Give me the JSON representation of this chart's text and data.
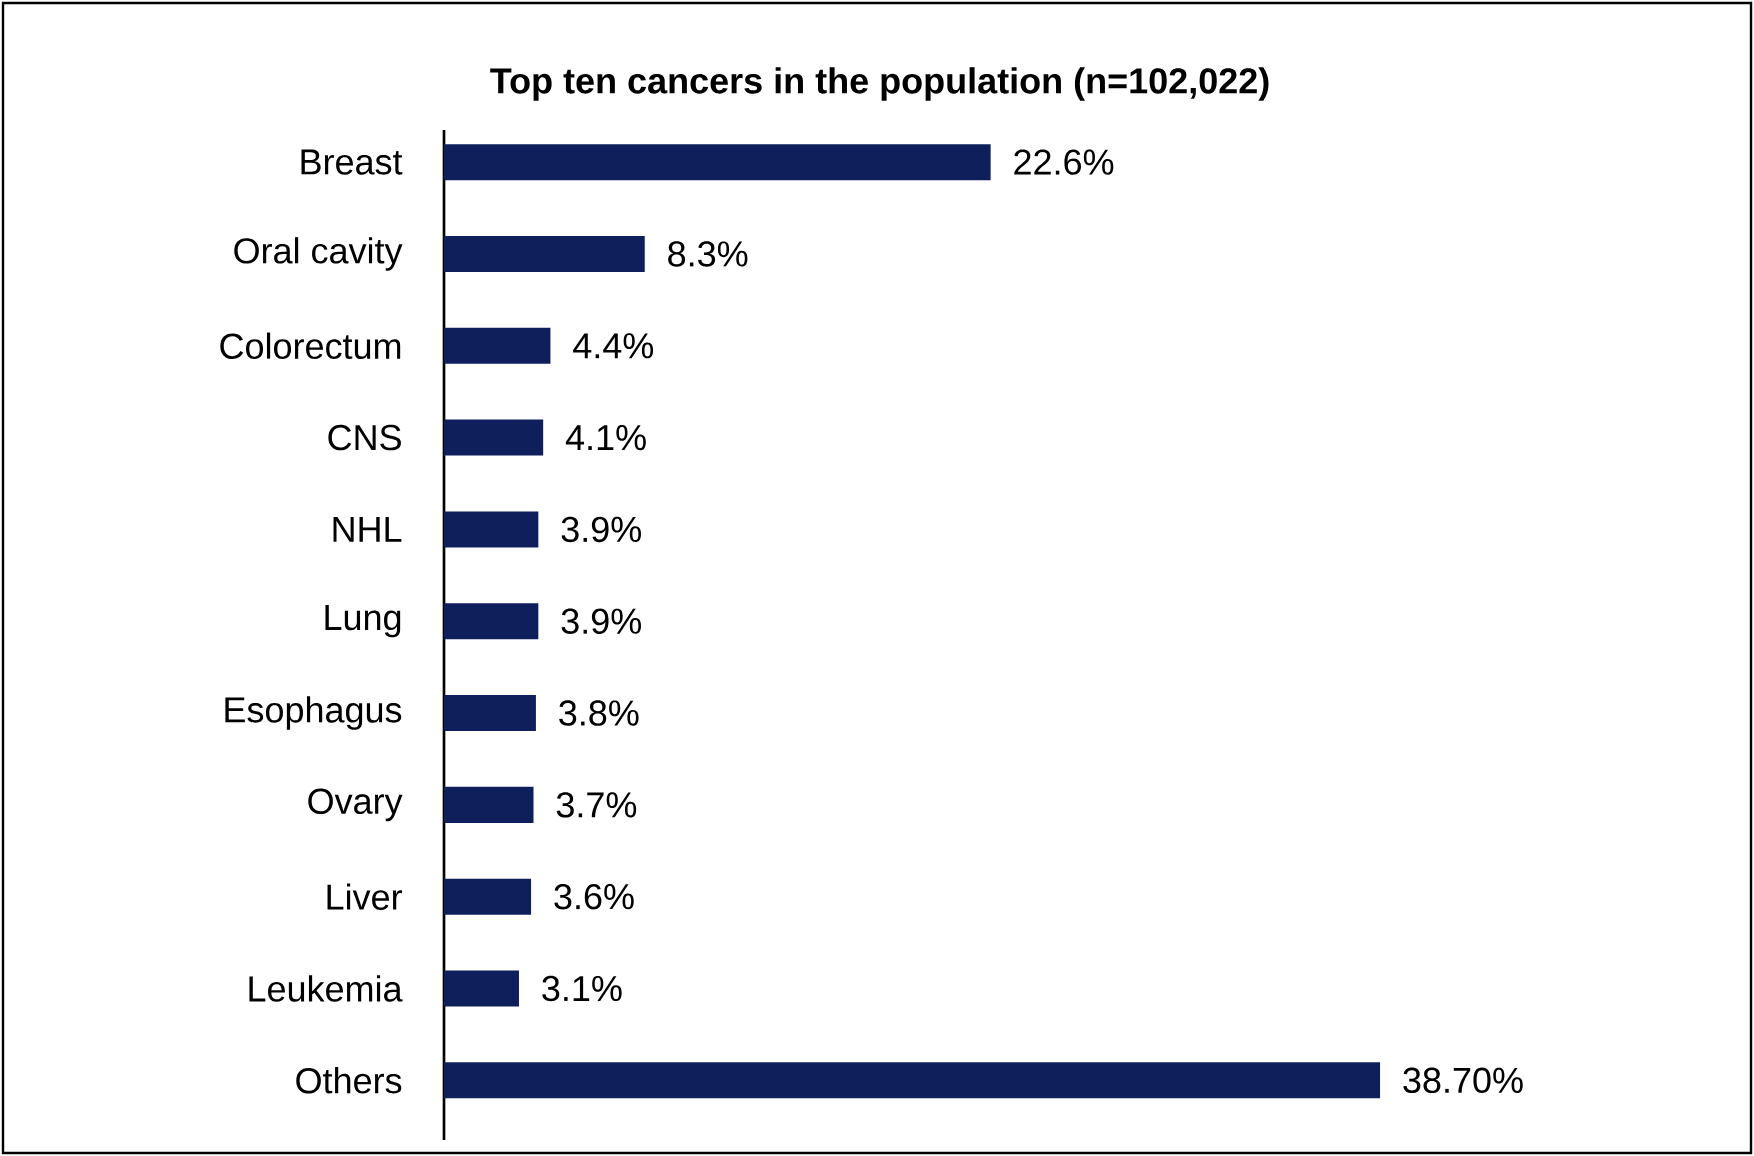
{
  "chart_data": {
    "type": "bar",
    "orientation": "horizontal",
    "title": "Top ten cancers in the population (n=102,022)",
    "categories": [
      "Breast",
      "Oral cavity",
      "Colorectum",
      "CNS",
      "NHL",
      "Lung",
      "Esophagus",
      "Ovary",
      "Liver",
      "Leukemia",
      "Others"
    ],
    "values": [
      22.6,
      8.3,
      4.4,
      4.1,
      3.9,
      3.9,
      3.8,
      3.7,
      3.6,
      3.1,
      38.7
    ],
    "value_labels": [
      "22.6%",
      "8.3%",
      "4.4%",
      "4.1%",
      "3.9%",
      "3.9%",
      "3.8%",
      "3.7%",
      "3.6%",
      "3.1%",
      "38.70%"
    ],
    "color": "#0f1f5c"
  }
}
